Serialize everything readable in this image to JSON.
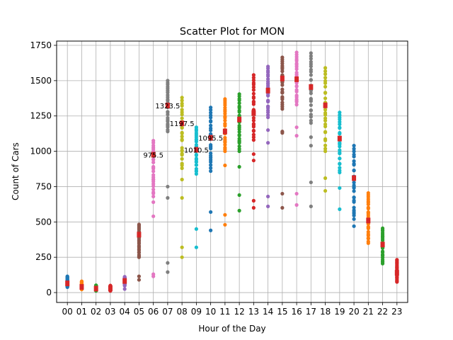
{
  "chart_data": {
    "type": "scatter",
    "title": "Scatter Plot for MON",
    "xlabel": "Hour of the Day",
    "ylabel": "Count of Cars",
    "categories": [
      "00",
      "01",
      "02",
      "03",
      "04",
      "05",
      "06",
      "07",
      "08",
      "09",
      "10",
      "11",
      "12",
      "13",
      "14",
      "15",
      "16",
      "17",
      "18",
      "19",
      "20",
      "21",
      "22",
      "23"
    ],
    "ylim": [
      -70,
      1780
    ],
    "yticks": [
      "0",
      "250",
      "500",
      "750",
      "1000",
      "1250",
      "1500",
      "1750"
    ],
    "grid": true,
    "median_color": "#d62728",
    "colors": [
      "#1f77b4",
      "#ff7f0e",
      "#2ca02c",
      "#d62728",
      "#9467bd",
      "#8c564b",
      "#e377c2",
      "#7f7f7f",
      "#bcbd22",
      "#17becf"
    ],
    "series": [
      {
        "hour": "00",
        "min": 38,
        "max": 115,
        "median": 65,
        "outliers": []
      },
      {
        "hour": "01",
        "min": 22,
        "max": 80,
        "median": 40,
        "outliers": []
      },
      {
        "hour": "02",
        "min": 12,
        "max": 52,
        "median": 28,
        "outliers": []
      },
      {
        "hour": "03",
        "min": 12,
        "max": 50,
        "median": 30,
        "outliers": []
      },
      {
        "hour": "04",
        "min": 48,
        "max": 112,
        "median": 82,
        "outliers": [
          25
        ]
      },
      {
        "hour": "05",
        "min": 250,
        "max": 482,
        "median": 410,
        "outliers": [
          90,
          115
        ]
      },
      {
        "hour": "06",
        "min": 680,
        "max": 1075,
        "median": 975.5,
        "outliers": [
          115,
          130,
          540,
          640
        ]
      },
      {
        "hour": "07",
        "min": 1140,
        "max": 1500,
        "median": 1323.5,
        "outliers": [
          145,
          210,
          670,
          750
        ]
      },
      {
        "hour": "08",
        "min": 880,
        "max": 1380,
        "median": 1197.5,
        "outliers": [
          250,
          320,
          670,
          800
        ]
      },
      {
        "hour": "09",
        "min": 840,
        "max": 1170,
        "median": 1010.5,
        "outliers": [
          320,
          450
        ]
      },
      {
        "hour": "10",
        "min": 860,
        "max": 1310,
        "median": 1095.5,
        "outliers": [
          440,
          570
        ]
      },
      {
        "hour": "11",
        "min": 1000,
        "max": 1370,
        "median": 1140,
        "outliers": [
          480,
          550,
          900
        ]
      },
      {
        "hour": "12",
        "min": 1000,
        "max": 1405,
        "median": 1225,
        "outliers": [
          580,
          690,
          890
        ]
      },
      {
        "hour": "13",
        "min": 1080,
        "max": 1540,
        "median": 1270,
        "outliers": [
          600,
          650,
          935,
          980
        ]
      },
      {
        "hour": "14",
        "min": 1240,
        "max": 1600,
        "median": 1430,
        "outliers": [
          610,
          680,
          1060,
          1150
        ]
      },
      {
        "hour": "15",
        "min": 1300,
        "max": 1665,
        "median": 1515,
        "outliers": [
          600,
          700,
          1130,
          1140
        ]
      },
      {
        "hour": "16",
        "min": 1330,
        "max": 1700,
        "median": 1510,
        "outliers": [
          620,
          700,
          1110,
          1170
        ]
      },
      {
        "hour": "17",
        "min": 1200,
        "max": 1695,
        "median": 1455,
        "outliers": [
          610,
          780,
          1040,
          1100
        ]
      },
      {
        "hour": "18",
        "min": 1000,
        "max": 1590,
        "median": 1325,
        "outliers": [
          720,
          810
        ]
      },
      {
        "hour": "19",
        "min": 850,
        "max": 1275,
        "median": 1090,
        "outliers": [
          590,
          740
        ]
      },
      {
        "hour": "20",
        "min": 520,
        "max": 1040,
        "median": 810,
        "outliers": [
          470,
          570
        ]
      },
      {
        "hour": "21",
        "min": 350,
        "max": 705,
        "median": 510,
        "outliers": []
      },
      {
        "hour": "22",
        "min": 205,
        "max": 455,
        "median": 340,
        "outliers": []
      },
      {
        "hour": "23",
        "min": 75,
        "max": 232,
        "median": 140,
        "outliers": []
      }
    ],
    "annotations": [
      {
        "hour": "06",
        "y": 975.5,
        "text": "975.5"
      },
      {
        "hour": "07",
        "y": 1323.5,
        "text": "1323.5"
      },
      {
        "hour": "08",
        "y": 1197.5,
        "text": "1197.5"
      },
      {
        "hour": "09",
        "y": 1010.5,
        "text": "1010.5"
      },
      {
        "hour": "10",
        "y": 1095.5,
        "text": "1095.5"
      }
    ]
  }
}
